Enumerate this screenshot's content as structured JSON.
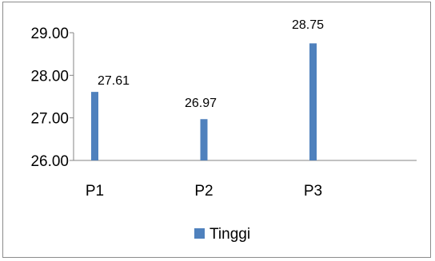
{
  "chart_data": {
    "type": "bar",
    "categories": [
      "P1",
      "P2",
      "P3"
    ],
    "series": [
      {
        "name": "Tinggi",
        "values": [
          27.61,
          26.97,
          28.75
        ],
        "color": "#4f81bd"
      }
    ],
    "data_labels": [
      "27.61",
      "26.97",
      "28.75"
    ],
    "ylim": [
      26.0,
      29.0
    ],
    "yticks": [
      26.0,
      27.0,
      28.0,
      29.0
    ],
    "ytick_labels": [
      "26.00",
      "27.00",
      "28.00",
      "29.00"
    ],
    "grid": false,
    "legend": {
      "position": "bottom",
      "entries": [
        "Tinggi"
      ]
    },
    "axis_color": "#868686"
  }
}
